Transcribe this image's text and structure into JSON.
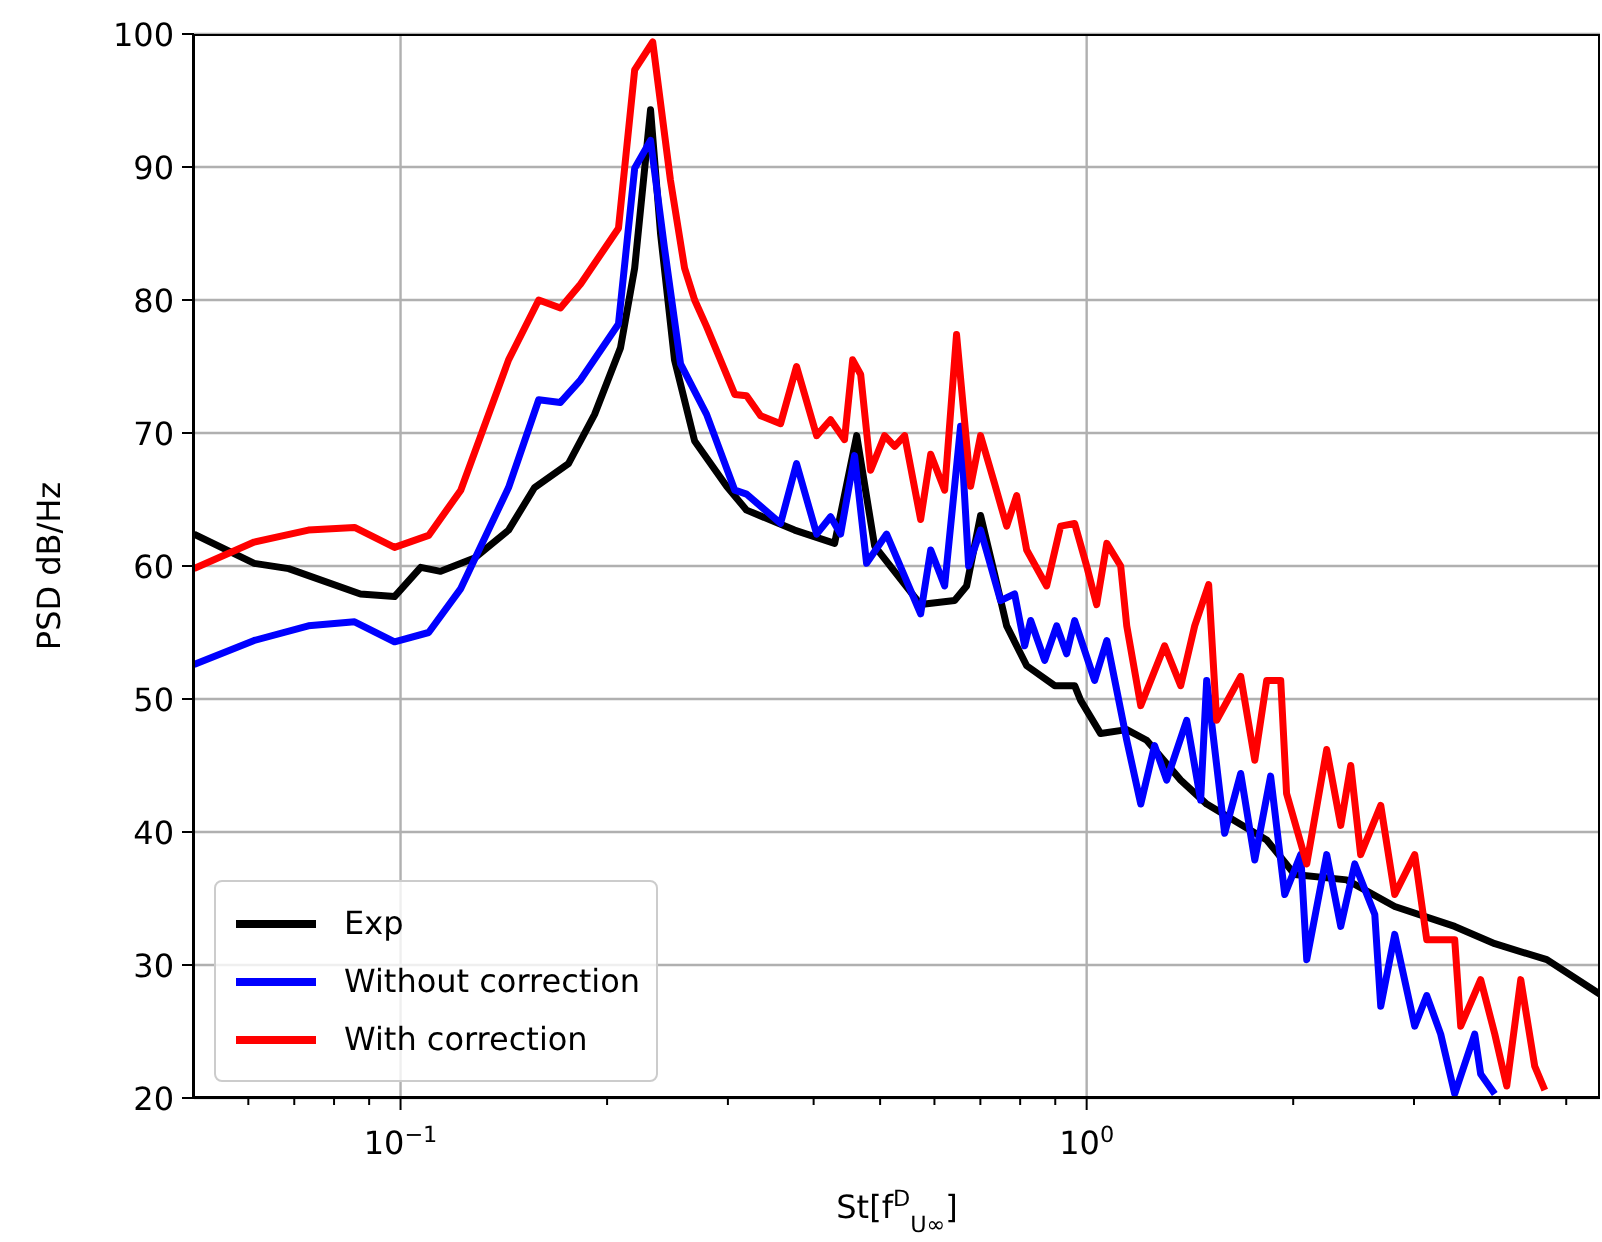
{
  "chart_data": {
    "type": "line",
    "xlabel": "St[f$^{D}$$_{U∞}$]",
    "ylabel": "PSD dB/Hz",
    "log": "x",
    "grid": true,
    "legend": "bottom left",
    "line_style": "solid",
    "marker": "none",
    "xlim": [
      0.05,
      5.6
    ],
    "ylim": [
      20,
      100
    ],
    "xticks": [
      {
        "value": 0.06,
        "label": null
      },
      {
        "value": 0.07,
        "label": null
      },
      {
        "value": 0.08,
        "label": null
      },
      {
        "value": 0.09,
        "label": null
      },
      {
        "value": 0.1,
        "label": "10$^{−1}$"
      },
      {
        "value": 0.2,
        "label": null
      },
      {
        "value": 0.3,
        "label": null
      },
      {
        "value": 0.4,
        "label": null
      },
      {
        "value": 0.5,
        "label": null
      },
      {
        "value": 0.6,
        "label": null
      },
      {
        "value": 0.7,
        "label": null
      },
      {
        "value": 0.8,
        "label": null
      },
      {
        "value": 0.9,
        "label": null
      },
      {
        "value": 1,
        "label": "10$^{0}$"
      },
      {
        "value": 2,
        "label": null
      },
      {
        "value": 3,
        "label": null
      },
      {
        "value": 4,
        "label": null
      },
      {
        "value": 5,
        "label": null
      }
    ],
    "yticks": [
      20,
      30,
      40,
      50,
      60,
      70,
      80,
      90,
      100
    ],
    "series": [
      {
        "name": "Exp",
        "color": "#000000",
        "x": [
          0.05,
          0.0612,
          0.0687,
          0.0874,
          0.098,
          0.107,
          0.1144,
          0.1282,
          0.1437,
          0.1568,
          0.1757,
          0.1918,
          0.2092,
          0.2194,
          0.2314,
          0.2393,
          0.2508,
          0.2683,
          0.2987,
          0.3194,
          0.3752,
          0.4292,
          0.4622,
          0.4909,
          0.5728,
          0.642,
          0.6684,
          0.7005,
          0.7341,
          0.7646,
          0.8177,
          0.8983,
          0.9605,
          0.98,
          1.048,
          1.144,
          1.223,
          1.371,
          1.496,
          1.83,
          2.01,
          2.393,
          2.812,
          3.439,
          3.934,
          4.685,
          5.6
        ],
        "values": [
          62.4,
          60.2,
          59.8,
          57.9,
          57.7,
          59.9,
          59.6,
          60.6,
          62.7,
          65.9,
          67.7,
          71.4,
          76.4,
          82.4,
          94.3,
          85,
          75.5,
          69.4,
          66,
          64.2,
          62.7,
          61.7,
          69.8,
          61.5,
          57.1,
          57.4,
          58.5,
          63.8,
          59.4,
          55.5,
          52.5,
          51,
          51,
          49.9,
          47.4,
          47.7,
          46.9,
          43.9,
          42.1,
          39.4,
          36.8,
          36.4,
          34.4,
          32.9,
          31.6,
          30.4,
          27.8
        ]
      },
      {
        "name": "Without correction",
        "color": "#0000ff",
        "x": [
          0.05,
          0.0612,
          0.0734,
          0.0857,
          0.098,
          0.1099,
          0.1224,
          0.1437,
          0.159,
          0.171,
          0.183,
          0.2078,
          0.2194,
          0.2314,
          0.2425,
          0.2559,
          0.2793,
          0.307,
          0.3194,
          0.358,
          0.3777,
          0.4041,
          0.4234,
          0.4379,
          0.4589,
          0.4778,
          0.511,
          0.5728,
          0.5925,
          0.6209,
          0.655,
          0.6729,
          0.7005,
          0.749,
          0.7852,
          0.8122,
          0.8286,
          0.8686,
          0.9043,
          0.935,
          0.9605,
          1.027,
          1.07,
          1.144,
          1.199,
          1.256,
          1.308,
          1.399,
          1.466,
          1.496,
          1.589,
          1.677,
          1.758,
          1.854,
          1.944,
          2.051,
          2.093,
          2.238,
          2.346,
          2.459,
          2.63,
          2.683,
          2.812,
          3.007,
          3.131,
          3.281,
          3.439,
          3.678,
          3.752,
          3.934
        ],
        "values": [
          52.6,
          54.4,
          55.5,
          55.8,
          54.3,
          55,
          58.3,
          65.9,
          72.5,
          72.3,
          74,
          78.2,
          89.9,
          92,
          83.9,
          75.2,
          71.4,
          65.7,
          65.4,
          63.2,
          67.7,
          62.4,
          63.7,
          62.4,
          68.3,
          60.2,
          62.4,
          56.4,
          61.2,
          58.5,
          70.5,
          60,
          62.7,
          57.4,
          57.9,
          54,
          55.9,
          52.9,
          55.5,
          53.4,
          55.9,
          51.4,
          54.4,
          46.9,
          42.1,
          46.5,
          43.9,
          48.4,
          42.4,
          51.4,
          39.9,
          44.4,
          37.9,
          44.2,
          35.3,
          38.3,
          30.4,
          38.3,
          32.9,
          37.6,
          33.8,
          26.9,
          32.3,
          25.4,
          27.7,
          24.8,
          20.3,
          24.8,
          21.8,
          20.3
        ]
      },
      {
        "name": "With correction",
        "color": "#ff0000",
        "x": [
          0.05,
          0.0612,
          0.0734,
          0.0857,
          0.098,
          0.1099,
          0.1224,
          0.1437,
          0.159,
          0.171,
          0.183,
          0.2078,
          0.2194,
          0.2331,
          0.2474,
          0.2594,
          0.2683,
          0.2793,
          0.307,
          0.3194,
          0.3348,
          0.358,
          0.3777,
          0.4041,
          0.4234,
          0.4437,
          0.456,
          0.4684,
          0.4843,
          0.5076,
          0.5251,
          0.5429,
          0.5728,
          0.5925,
          0.6209,
          0.6462,
          0.6774,
          0.7005,
          0.7341,
          0.7646,
          0.7907,
          0.8177,
          0.8743,
          0.9163,
          0.9605,
          1,
          1.034,
          1.07,
          1.121,
          1.144,
          1.199,
          1.299,
          1.371,
          1.437,
          1.506,
          1.547,
          1.677,
          1.758,
          1.83,
          1.918,
          1.956,
          2.093,
          2.238,
          2.346,
          2.426,
          2.508,
          2.683,
          2.812,
          3.007,
          3.131,
          3.439,
          3.509,
          3.752,
          3.934,
          4.095,
          4.292,
          4.498,
          4.653
        ],
        "values": [
          59.8,
          61.8,
          62.7,
          62.9,
          61.4,
          62.3,
          65.7,
          75.5,
          80,
          79.4,
          81.2,
          85.4,
          97.3,
          99.4,
          89,
          82.4,
          80,
          78,
          72.9,
          72.8,
          71.3,
          70.7,
          75,
          69.8,
          71,
          69.5,
          75.5,
          74.4,
          67.2,
          69.8,
          69,
          69.8,
          63.5,
          68.4,
          65.7,
          77.4,
          66,
          69.8,
          66.2,
          63,
          65.3,
          61.2,
          58.5,
          63,
          63.2,
          60,
          57.1,
          61.7,
          60,
          55.5,
          49.5,
          54,
          51,
          55.5,
          58.6,
          48.4,
          51.7,
          45.4,
          51.4,
          51.4,
          42.9,
          37.6,
          46.2,
          40.5,
          45,
          38.3,
          42,
          35.3,
          38.3,
          31.9,
          31.9,
          25.4,
          28.9,
          24.8,
          20.9,
          28.9,
          22.4,
          20.6
        ]
      }
    ]
  }
}
